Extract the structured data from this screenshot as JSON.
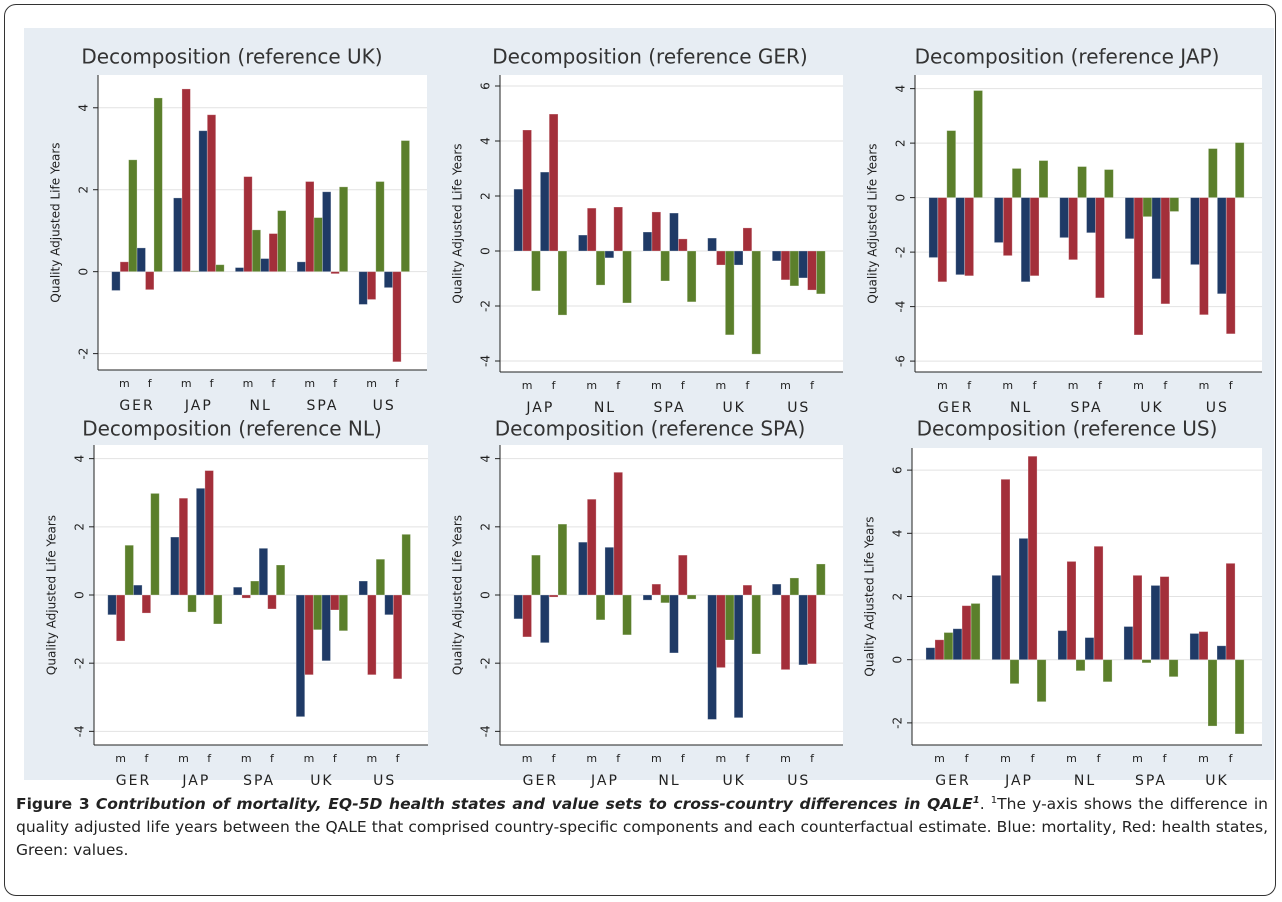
{
  "chart_data": [
    {
      "type": "bar",
      "title": "Decomposition (reference UK)",
      "ylabel": "Quality Adjusted Life Years",
      "groups": [
        "GER",
        "JAP",
        "NL",
        "SPA",
        "US"
      ],
      "categories": [
        "m",
        "f",
        "m",
        "f",
        "m",
        "f",
        "m",
        "f",
        "m",
        "f"
      ],
      "series": [
        {
          "color": "#1f3a66",
          "values": [
            -0.46,
            0.58,
            1.8,
            3.44,
            0.1,
            0.32,
            0.24,
            1.95,
            -0.8,
            -0.39
          ]
        },
        {
          "color": "#a32f3a",
          "values": [
            0.24,
            -0.44,
            4.46,
            3.83,
            2.32,
            0.93,
            2.2,
            -0.05,
            -0.68,
            -2.2
          ]
        },
        {
          "color": "#5b7f2b",
          "values": [
            2.73,
            4.24,
            0.02,
            0.17,
            1.02,
            1.49,
            1.32,
            2.07,
            2.2,
            3.2
          ]
        }
      ],
      "ylim": [
        -2.4,
        4.8
      ],
      "yticks": [
        -2,
        0,
        2,
        4
      ],
      "grid": true
    },
    {
      "type": "bar",
      "title": "Decomposition (reference GER)",
      "ylabel": "Quality Adjusted Life Years",
      "groups": [
        "JAP",
        "NL",
        "SPA",
        "UK",
        "US"
      ],
      "categories": [
        "m",
        "f",
        "m",
        "f",
        "m",
        "f",
        "m",
        "f",
        "m",
        "f"
      ],
      "series": [
        {
          "color": "#1f3a66",
          "values": [
            2.25,
            2.87,
            0.58,
            -0.25,
            0.69,
            1.38,
            0.47,
            -0.51,
            -0.36,
            -0.98
          ]
        },
        {
          "color": "#a32f3a",
          "values": [
            4.4,
            4.98,
            1.56,
            1.6,
            1.42,
            0.44,
            -0.51,
            0.84,
            -1.05,
            -1.42
          ]
        },
        {
          "color": "#5b7f2b",
          "values": [
            -1.45,
            -2.33,
            -1.24,
            -1.89,
            -1.09,
            -1.85,
            -3.05,
            -3.75,
            -1.27,
            -1.56
          ]
        }
      ],
      "ylim": [
        -4.4,
        6.4
      ],
      "yticks": [
        -4,
        -2,
        0,
        2,
        4,
        6
      ],
      "grid": true
    },
    {
      "type": "bar",
      "title": "Decomposition (reference JAP)",
      "ylabel": "Quality Adjusted Life Years",
      "groups": [
        "GER",
        "NL",
        "SPA",
        "UK",
        "US"
      ],
      "categories": [
        "m",
        "f",
        "m",
        "f",
        "m",
        "f",
        "m",
        "f",
        "m",
        "f"
      ],
      "series": [
        {
          "color": "#1f3a66",
          "values": [
            -2.2,
            -2.83,
            -1.65,
            -3.09,
            -1.47,
            -1.29,
            -1.51,
            -2.98,
            -2.46,
            -3.53
          ]
        },
        {
          "color": "#a32f3a",
          "values": [
            -3.09,
            -2.87,
            -2.13,
            -2.87,
            -2.28,
            -3.68,
            -5.04,
            -3.9,
            -4.3,
            -5.0
          ]
        },
        {
          "color": "#5b7f2b",
          "values": [
            2.46,
            3.93,
            1.07,
            1.36,
            1.14,
            1.03,
            -0.7,
            -0.51,
            1.8,
            2.02
          ]
        }
      ],
      "ylim": [
        -6.4,
        4.5
      ],
      "yticks": [
        -6,
        -4,
        -2,
        0,
        2,
        4
      ],
      "grid": true
    },
    {
      "type": "bar",
      "title": "Decomposition (reference NL)",
      "ylabel": "Quality Adjusted Life Years",
      "groups": [
        "GER",
        "JAP",
        "SPA",
        "UK",
        "US"
      ],
      "categories": [
        "m",
        "f",
        "m",
        "f",
        "m",
        "f",
        "m",
        "f",
        "m",
        "f"
      ],
      "series": [
        {
          "color": "#1f3a66",
          "values": [
            -0.58,
            0.29,
            1.7,
            3.13,
            0.23,
            1.37,
            -3.57,
            -1.93,
            0.41,
            -0.58
          ]
        },
        {
          "color": "#a32f3a",
          "values": [
            -1.35,
            -0.53,
            2.84,
            3.65,
            -0.09,
            -0.41,
            -2.34,
            -0.44,
            -2.34,
            -2.46
          ]
        },
        {
          "color": "#5b7f2b",
          "values": [
            1.46,
            2.98,
            -0.5,
            -0.85,
            0.41,
            0.88,
            -1.02,
            -1.05,
            1.05,
            1.78
          ]
        }
      ],
      "ylim": [
        -4.4,
        4.4
      ],
      "yticks": [
        -4,
        -2,
        0,
        2,
        4
      ],
      "grid": true
    },
    {
      "type": "bar",
      "title": "Decomposition (reference SPA)",
      "ylabel": "Quality Adjusted Life Years",
      "groups": [
        "GER",
        "JAP",
        "NL",
        "UK",
        "US"
      ],
      "categories": [
        "m",
        "f",
        "m",
        "f",
        "m",
        "f",
        "m",
        "f",
        "m",
        "f"
      ],
      "series": [
        {
          "color": "#1f3a66",
          "values": [
            -0.7,
            -1.4,
            1.55,
            1.4,
            -0.15,
            -1.7,
            -3.65,
            -3.6,
            0.32,
            -2.05
          ]
        },
        {
          "color": "#a32f3a",
          "values": [
            -1.23,
            -0.06,
            2.81,
            3.6,
            0.32,
            1.17,
            -2.13,
            0.29,
            -2.19,
            -2.02
          ]
        },
        {
          "color": "#5b7f2b",
          "values": [
            1.17,
            2.08,
            -0.73,
            -1.17,
            -0.23,
            -0.12,
            -1.32,
            -1.73,
            0.5,
            0.91
          ]
        }
      ],
      "ylim": [
        -4.4,
        4.4
      ],
      "yticks": [
        -4,
        -2,
        0,
        2,
        4
      ],
      "grid": true
    },
    {
      "type": "bar",
      "title": "Decomposition (reference US)",
      "ylabel": "Quality Adjusted Life Years",
      "groups": [
        "GER",
        "JAP",
        "NL",
        "SPA",
        "UK"
      ],
      "categories": [
        "m",
        "f",
        "m",
        "f",
        "m",
        "f",
        "m",
        "f",
        "m",
        "f"
      ],
      "series": [
        {
          "color": "#1f3a66",
          "values": [
            0.38,
            0.98,
            2.67,
            3.84,
            0.92,
            0.7,
            1.05,
            2.35,
            0.83,
            0.44
          ]
        },
        {
          "color": "#a32f3a",
          "values": [
            0.63,
            1.71,
            5.71,
            6.44,
            3.11,
            3.59,
            2.67,
            2.63,
            0.89,
            3.05
          ]
        },
        {
          "color": "#5b7f2b",
          "values": [
            0.86,
            1.78,
            -0.76,
            -1.33,
            -0.35,
            -0.7,
            -0.1,
            -0.54,
            -2.1,
            -2.35
          ]
        }
      ],
      "ylim": [
        -2.7,
        6.7
      ],
      "yticks": [
        -2,
        0,
        2,
        4,
        6
      ],
      "grid": true
    }
  ],
  "caption": {
    "label": "Figure 3",
    "title": "Contribution of mortality, EQ-5D health states and value sets to cross-country differences in QALE",
    "title_sup": "1",
    "note_sup": "1",
    "text": "The y-axis shows the difference in quality adjusted life years between the QALE that comprised country-specific components and each counterfactual estimate. Blue: mortality, Red: health states, Green: values."
  }
}
